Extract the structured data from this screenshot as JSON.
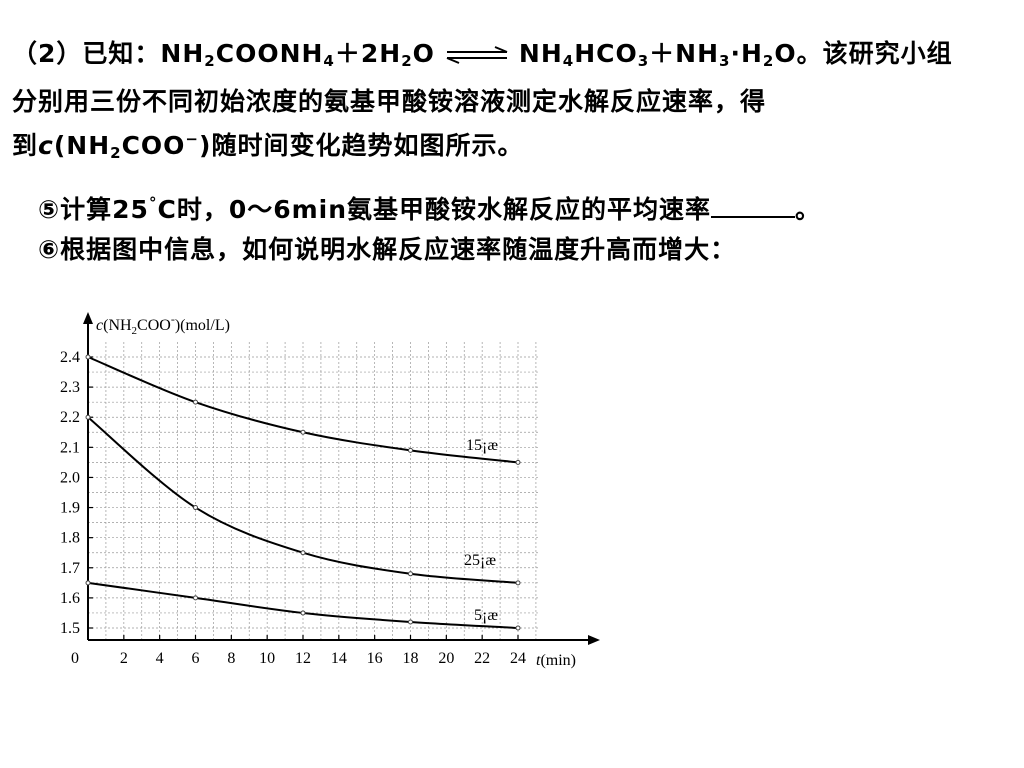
{
  "question": {
    "part_number": "（2）",
    "known": "已知：",
    "reactants": [
      "NH",
      "2",
      "COONH",
      "4",
      "＋2H",
      "2",
      "O"
    ],
    "products": [
      "NH",
      "4",
      "HCO",
      "3",
      "＋NH",
      "3",
      "·H",
      "2",
      "O。"
    ],
    "line1_tail": "该研究小组",
    "line2": "分别用三份不同初始浓度的氨基甲酸铵溶液测定水解反应速率，得",
    "line3_start": "到",
    "line3_c": "c",
    "line3_formula": [
      "(NH",
      "2",
      "COO",
      "−",
      ")"
    ],
    "line3_tail": "随时间变化趋势如图所示。",
    "q5_start": "⑤计算25",
    "q5_degree": "°",
    "q5_tail": "C时，0～6min氨基甲酸铵水解反应的平均速率",
    "q5_end": "。",
    "q6": "⑥根据图中信息，如何说明水解反应速率随温度升高而增大："
  },
  "chart_data": {
    "type": "line",
    "ylabel_c": "c",
    "ylabel_formula": [
      "(NH",
      "2",
      "COO",
      "-",
      ")(mol/L)"
    ],
    "xlabel_t": "t",
    "xlabel_unit": "(min)",
    "origin_label": "0",
    "x_ticks": [
      2,
      4,
      6,
      8,
      10,
      12,
      14,
      16,
      18,
      20,
      22,
      24
    ],
    "y_ticks": [
      1.5,
      1.6,
      1.7,
      1.8,
      1.9,
      2.0,
      2.1,
      2.2,
      2.3,
      2.4
    ],
    "y_tick_labels": [
      "1.5",
      "1.6",
      "1.7",
      "1.8",
      "1.9",
      "2.0",
      "2.1",
      "2.2",
      "2.3",
      "2.4"
    ],
    "xlim": [
      0,
      24
    ],
    "ylim": [
      1.45,
      2.45
    ],
    "grid": true,
    "series": [
      {
        "name": "15¡æ",
        "x": [
          0,
          6,
          12,
          18,
          24
        ],
        "y": [
          2.4,
          2.25,
          2.15,
          2.09,
          2.05
        ]
      },
      {
        "name": "25¡æ",
        "x": [
          0,
          6,
          12,
          18,
          24
        ],
        "y": [
          2.2,
          1.9,
          1.75,
          1.68,
          1.65
        ]
      },
      {
        "name": "5¡æ",
        "x": [
          0,
          6,
          12,
          18,
          24
        ],
        "y": [
          1.65,
          1.6,
          1.55,
          1.52,
          1.5
        ]
      }
    ]
  }
}
